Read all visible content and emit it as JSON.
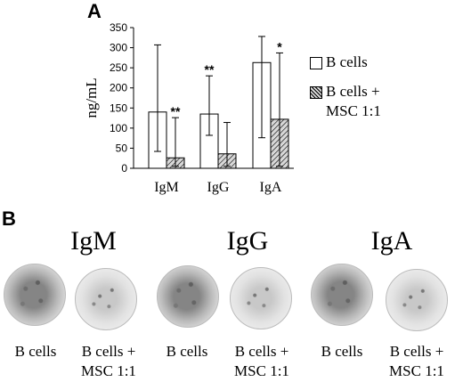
{
  "panel_a_letter": "A",
  "panel_b_letter": "B",
  "chart_data": {
    "type": "bar",
    "categories": [
      "IgM",
      "IgG",
      "IgA"
    ],
    "ylabel": "ng/mL",
    "ylim": [
      0,
      350
    ],
    "yticks": [
      0,
      50,
      100,
      150,
      200,
      250,
      300,
      350
    ],
    "series": [
      {
        "name": "B cells",
        "values": [
          140,
          135,
          263
        ],
        "err_high": [
          307,
          230,
          328
        ],
        "err_low": [
          42,
          82,
          76
        ]
      },
      {
        "name": "B cells + MSC 1:1",
        "values": [
          26,
          36,
          122
        ],
        "err_high": [
          126,
          114,
          287
        ],
        "err_low": [
          5,
          5,
          5
        ]
      }
    ],
    "annotations": [
      {
        "category": "IgM",
        "series": 1,
        "text": "**"
      },
      {
        "category": "IgG",
        "series": 0,
        "text": "**"
      },
      {
        "category": "IgA",
        "series": 1,
        "text": "*"
      }
    ],
    "legend": [
      "B cells",
      "B cells +",
      "MSC 1:1"
    ],
    "legend_position": "right"
  },
  "panel_b": {
    "groups": [
      {
        "title": "IgM",
        "labels": [
          "B cells",
          "B cells +",
          "MSC 1:1"
        ]
      },
      {
        "title": "IgG",
        "labels": [
          "B cells",
          "B cells +",
          "MSC 1:1"
        ]
      },
      {
        "title": "IgA",
        "labels": [
          "B cells",
          "B cells +",
          "MSC 1:1"
        ]
      }
    ]
  }
}
